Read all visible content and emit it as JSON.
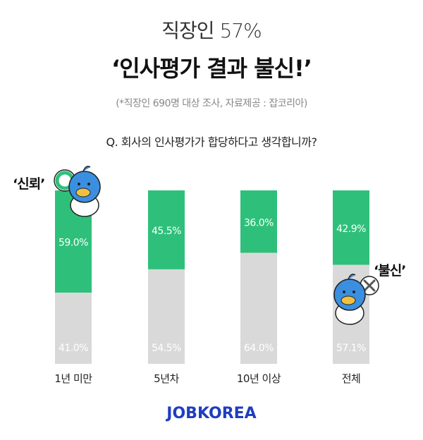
{
  "title_line1": "직장인 57%",
  "title_line2": "‘인사평가 결과 불신!’",
  "source": "(*직장인 690명 대상 조사, 자료제공 : 잡코리아)",
  "question": "Q. 회사의 인사평가가 합당하다고 생각합니까?",
  "tags": {
    "trust": "‘신뢰’",
    "distrust": "‘불신’"
  },
  "logo": "JOBKOREA",
  "colors": {
    "trust": "#2ec07a",
    "distrust": "#d9d9d9",
    "logo": "#1f3dbf",
    "mascot": "#3a8fe0"
  },
  "icons": {
    "trust_mark": "circle-o-icon",
    "distrust_mark": "x-mark-icon",
    "mascot": "bird-mascot-icon"
  },
  "chart_data": {
    "type": "bar",
    "stacked": true,
    "categories": [
      "1년 미만",
      "5년차",
      "10년 이상",
      "전체"
    ],
    "series": [
      {
        "name": "신뢰",
        "values": [
          59.0,
          45.5,
          36.0,
          42.9
        ],
        "labels": [
          "59.0%",
          "45.5%",
          "36.0%",
          "42.9%"
        ]
      },
      {
        "name": "불신",
        "values": [
          41.0,
          54.5,
          64.0,
          57.1
        ],
        "labels": [
          "41.0%",
          "54.5%",
          "64.0%",
          "57.1%"
        ]
      }
    ],
    "ylim": [
      0,
      100
    ],
    "grid": false
  }
}
